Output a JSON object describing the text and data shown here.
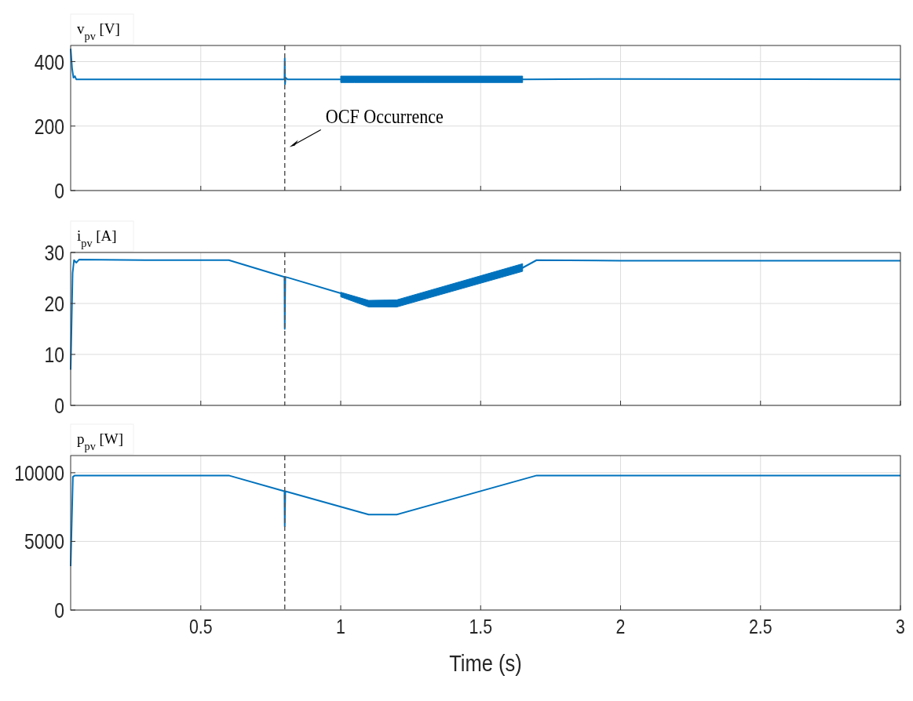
{
  "chart_data": [
    {
      "type": "line",
      "ylabel": "v$_{pv}$ [V]",
      "xlim": [
        0.035,
        3
      ],
      "xticks": [
        0.5,
        1,
        1.5,
        2,
        2.5,
        3
      ],
      "ylim": [
        0,
        450
      ],
      "yticks": [
        0,
        200,
        400
      ],
      "grid": true,
      "tick_labels": "y",
      "line_style": "solid",
      "series": [
        {
          "color": "#0072bd",
          "x": [
            0.035,
            0.04,
            0.045,
            0.05,
            0.055,
            0.06,
            0.3,
            0.799,
            0.8,
            0.801,
            0.803,
            0.81,
            1.0,
            1.05,
            1.3,
            1.64,
            1.65,
            2.0,
            3.0
          ],
          "values": [
            440,
            380,
            350,
            355,
            345,
            345,
            345,
            345,
            410,
            330,
            350,
            345,
            345,
            345,
            345,
            345,
            345,
            346,
            345
          ],
          "lower": [
            null,
            null,
            null,
            null,
            null,
            null,
            null,
            null,
            null,
            null,
            null,
            null,
            335,
            335,
            335,
            335,
            335,
            null,
            null
          ],
          "upper": [
            null,
            null,
            null,
            null,
            null,
            null,
            null,
            null,
            null,
            null,
            null,
            null,
            355,
            355,
            355,
            355,
            355,
            null,
            null
          ]
        }
      ],
      "ref_lines": [
        {
          "axis": "x",
          "value": 0.8,
          "color": "#555555",
          "line_style": "dashed"
        }
      ],
      "annotations": [
        {
          "text": "OCF Occurrence",
          "x": 0.8,
          "y": 135
        }
      ]
    },
    {
      "type": "line",
      "ylabel": "i$_{pv}$ [A]",
      "xlim": [
        0.035,
        3
      ],
      "xticks": [
        0.5,
        1,
        1.5,
        2,
        2.5,
        3
      ],
      "ylim": [
        0,
        30
      ],
      "yticks": [
        0,
        10,
        20,
        30
      ],
      "grid": true,
      "tick_labels": "y",
      "line_style": "solid",
      "series": [
        {
          "color": "#0072bd",
          "x": [
            0.035,
            0.042,
            0.047,
            0.055,
            0.065,
            0.3,
            0.6,
            0.799,
            0.8,
            0.802,
            0.81,
            1.0,
            1.1,
            1.2,
            1.65,
            1.7,
            2.0,
            3.0
          ],
          "values": [
            7,
            26,
            28.5,
            28,
            28.6,
            28.5,
            28.5,
            25.2,
            15,
            25.2,
            25.1,
            22,
            20,
            20,
            27,
            28.5,
            28.4,
            28.4
          ],
          "lower": [
            null,
            null,
            null,
            null,
            null,
            null,
            null,
            null,
            null,
            null,
            null,
            21.3,
            19.3,
            19.3,
            26.3,
            null,
            null,
            null
          ],
          "upper": [
            null,
            null,
            null,
            null,
            null,
            null,
            null,
            null,
            null,
            null,
            null,
            22.2,
            20.6,
            20.7,
            27.8,
            null,
            null,
            null
          ]
        }
      ],
      "ref_lines": [
        {
          "axis": "x",
          "value": 0.8,
          "color": "#555555",
          "line_style": "dashed"
        }
      ]
    },
    {
      "type": "line",
      "ylabel": "p$_{pv}$ [W]",
      "xlabel": "Time (s)",
      "xlim": [
        0.035,
        3
      ],
      "xticks": [
        0.5,
        1,
        1.5,
        2,
        2.5,
        3
      ],
      "ylim": [
        0,
        11250
      ],
      "yticks": [
        0,
        5000,
        10000
      ],
      "grid": true,
      "line_style": "solid",
      "series": [
        {
          "color": "#0072bd",
          "x": [
            0.035,
            0.043,
            0.05,
            0.3,
            0.6,
            0.799,
            0.8,
            0.802,
            1.1,
            1.2,
            1.7,
            3.0
          ],
          "values": [
            3200,
            9700,
            9800,
            9800,
            9800,
            8650,
            6100,
            8650,
            6950,
            6950,
            9800,
            9800
          ]
        }
      ],
      "ref_lines": [
        {
          "axis": "x",
          "value": 0.8,
          "color": "#555555",
          "line_style": "dashed"
        }
      ]
    }
  ]
}
